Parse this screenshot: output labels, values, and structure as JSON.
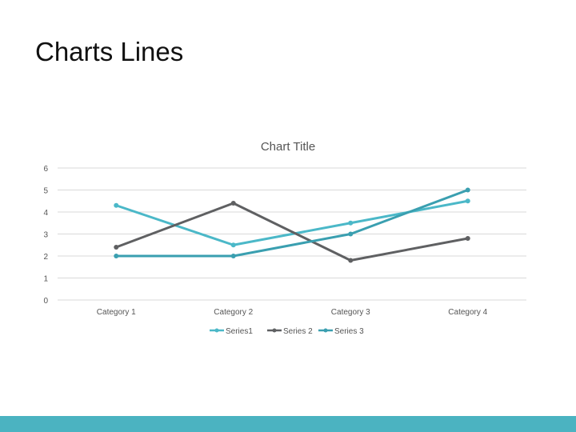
{
  "slide": {
    "title": "Charts Lines",
    "footer_color": "#4bb3c1"
  },
  "chart_data": {
    "type": "line",
    "title": "Chart Title",
    "categories": [
      "Category 1",
      "Category 2",
      "Category 3",
      "Category 4"
    ],
    "ylim": [
      0,
      6
    ],
    "yticks": [
      0,
      1,
      2,
      3,
      4,
      5,
      6
    ],
    "grid": true,
    "legend": "bottom",
    "series": [
      {
        "name": "Series1",
        "values": [
          4.3,
          2.5,
          3.5,
          4.5
        ],
        "color": "#4bb8c8"
      },
      {
        "name": "Series 2",
        "values": [
          2.4,
          4.4,
          1.8,
          2.8
        ],
        "color": "#5f6062"
      },
      {
        "name": "Series 3",
        "values": [
          2.0,
          2.0,
          3.0,
          5.0
        ],
        "color": "#3a9fb0"
      }
    ]
  }
}
